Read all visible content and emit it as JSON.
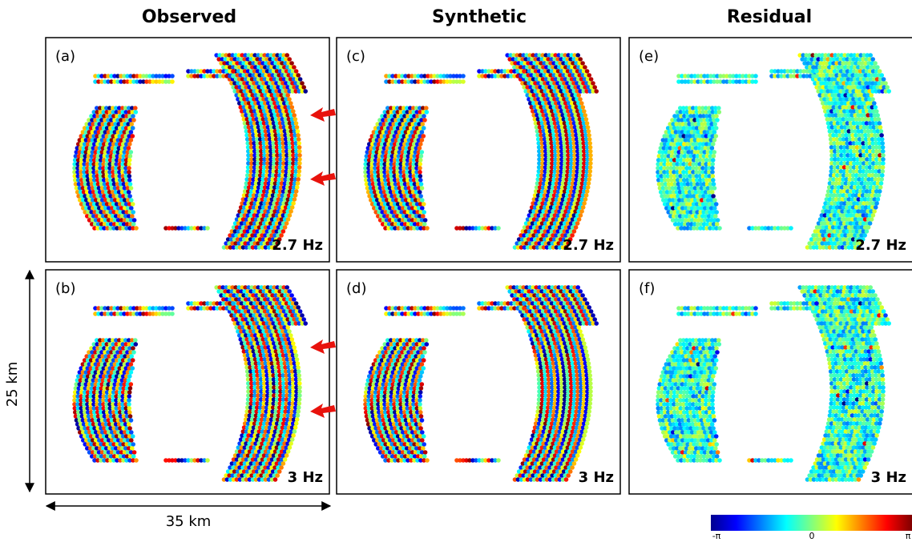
{
  "headers": [
    "Observed",
    "Synthetic",
    "Residual"
  ],
  "panels": [
    {
      "label": "(a)",
      "frequency": "2.7 Hz"
    },
    {
      "label": "(b)",
      "frequency": "3 Hz"
    },
    {
      "label": "(c)",
      "frequency": "2.7 Hz"
    },
    {
      "label": "(d)",
      "frequency": "3 Hz"
    },
    {
      "label": "(e)",
      "frequency": "2.7 Hz"
    },
    {
      "label": "(f)",
      "frequency": "3 Hz"
    }
  ],
  "scale": {
    "vertical": "25 km",
    "horizontal": "35 km"
  },
  "colorbar": {
    "labels": [
      "-π",
      "0",
      "π"
    ]
  }
}
